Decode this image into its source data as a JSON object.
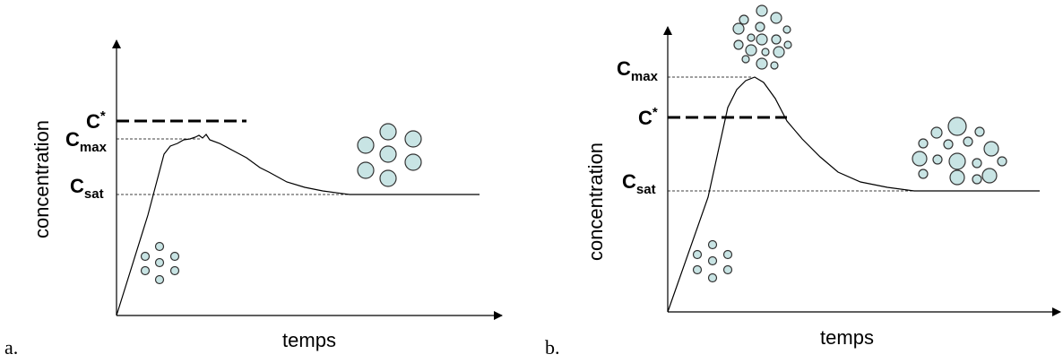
{
  "panels": [
    {
      "label": "a.",
      "y_axis_label": "concentration",
      "x_axis_label": "temps",
      "levels": {
        "c_star": {
          "main": "C",
          "sup": "*"
        },
        "c_max": {
          "main": "C",
          "sub": "max"
        },
        "c_sat": {
          "main": "C",
          "sub": "sat"
        }
      }
    },
    {
      "label": "b.",
      "y_axis_label": "concentration",
      "x_axis_label": "temps",
      "levels": {
        "c_star": {
          "main": "C",
          "sup": "*"
        },
        "c_max": {
          "main": "C",
          "sub": "max"
        },
        "c_sat": {
          "main": "C",
          "sub": "sat"
        }
      }
    }
  ]
}
